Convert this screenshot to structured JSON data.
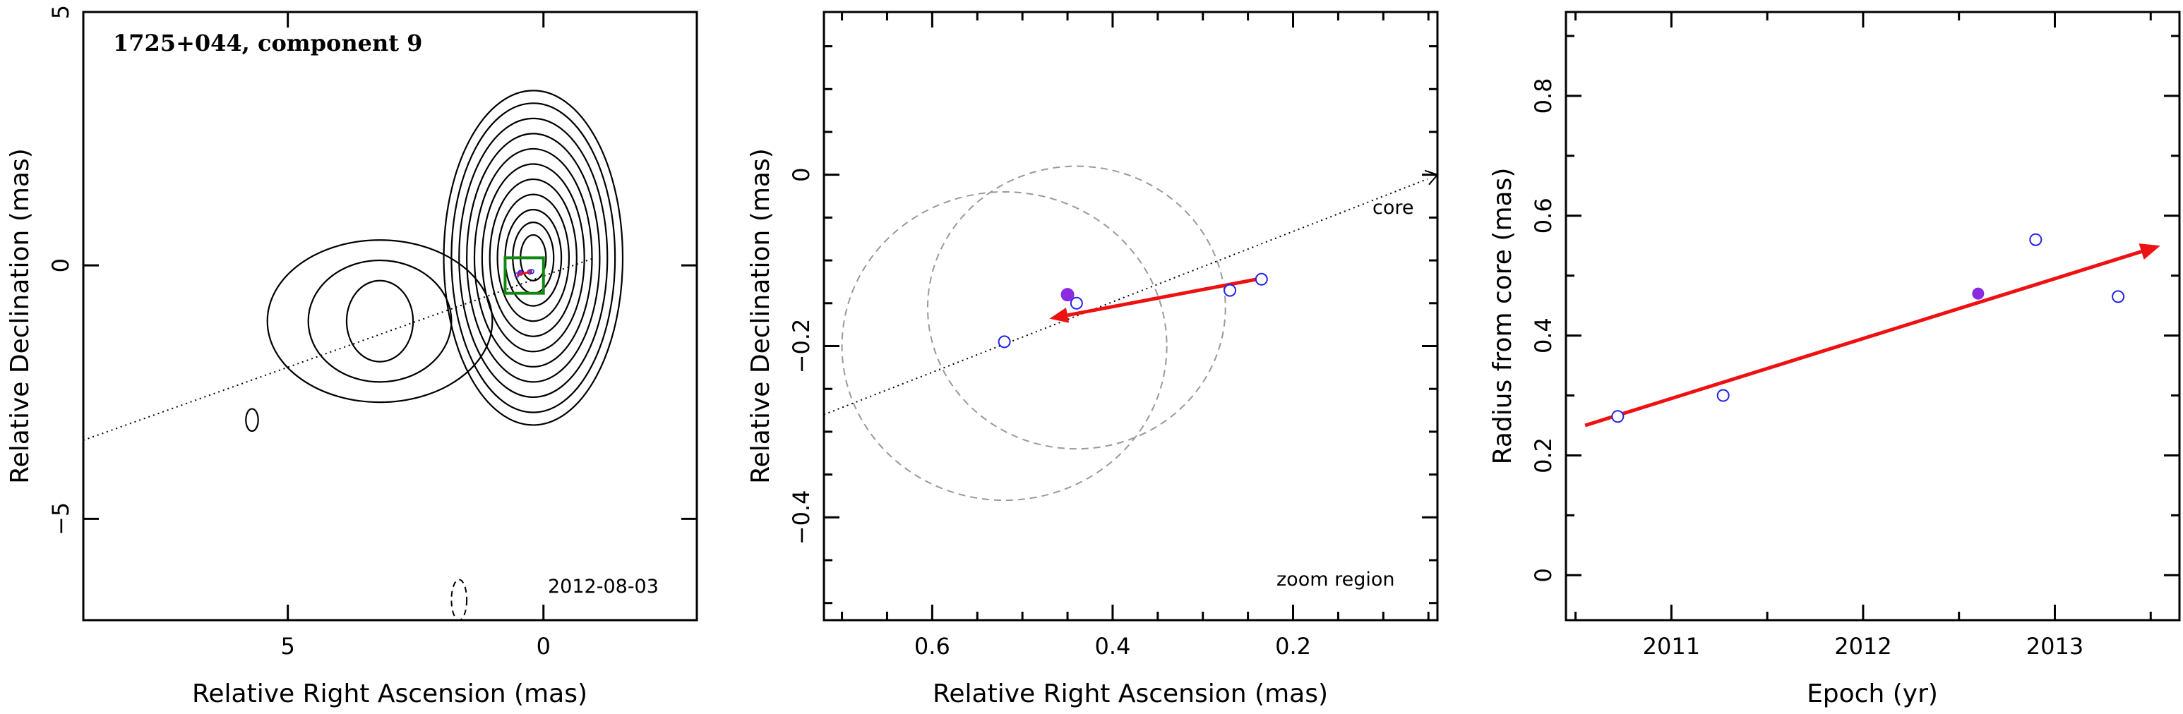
{
  "colors": {
    "axis": "#000000",
    "contour": "#000000",
    "arrow": "#ee1111",
    "marker_open": "#2222ee",
    "marker_filled": "#8a2be2",
    "zoom_box": "#118811",
    "beam_circle": "#999999"
  },
  "chart_data": [
    {
      "type": "contour",
      "title": "1725+044, component 9",
      "date_label": "2012-08-03",
      "xlabel": "Relative Right Ascension (mas)",
      "ylabel": "Relative Declination (mas)",
      "xlim": [
        9,
        -3
      ],
      "ylim": [
        -7,
        5
      ],
      "x_ticks": [
        5,
        0
      ],
      "y_ticks": [
        5,
        0,
        -5
      ],
      "jet_axis_line": {
        "x": [
          9,
          -1
        ],
        "y": [
          -3.45,
          0.15
        ]
      },
      "contours": [
        {
          "region": "core",
          "center": [
            0.2,
            0.15
          ],
          "radii": [
            [
              0.25,
              0.45
            ],
            [
              0.4,
              0.7
            ],
            [
              0.55,
              0.95
            ],
            [
              0.7,
              1.25
            ],
            [
              0.85,
              1.55
            ],
            [
              1.0,
              1.85
            ],
            [
              1.15,
              2.15
            ],
            [
              1.3,
              2.45
            ],
            [
              1.45,
              2.75
            ],
            [
              1.6,
              3.05
            ],
            [
              1.75,
              3.3
            ]
          ]
        },
        {
          "region": "extended",
          "center": [
            3.2,
            -1.1
          ],
          "radii": [
            [
              0.65,
              0.8
            ],
            [
              1.4,
              1.2
            ],
            [
              2.2,
              1.6
            ]
          ]
        },
        {
          "region": "isolated",
          "center": [
            5.7,
            -3.05
          ],
          "radii": [
            [
              0.12,
              0.22
            ]
          ]
        }
      ],
      "beam": {
        "center": [
          1.65,
          -6.6
        ],
        "radii": [
          0.15,
          0.4
        ],
        "style": "dashed"
      },
      "zoom_box": {
        "x": [
          0.75,
          0.0
        ],
        "y": [
          -0.55,
          0.15
        ]
      },
      "component_markers": [
        {
          "x": 0.52,
          "y": -0.19,
          "style": "open"
        },
        {
          "x": 0.44,
          "y": -0.15,
          "style": "open"
        },
        {
          "x": 0.27,
          "y": -0.13,
          "style": "open"
        },
        {
          "x": 0.23,
          "y": -0.12,
          "style": "open"
        },
        {
          "x": 0.45,
          "y": -0.14,
          "style": "filled"
        }
      ]
    },
    {
      "type": "scatter",
      "title": "",
      "zoom_label": "zoom region",
      "core_label": "core",
      "xlabel": "Relative Right Ascension (mas)",
      "ylabel": "Relative Declination (mas)",
      "xlim": [
        0.72,
        0.04
      ],
      "ylim": [
        -0.52,
        0.19
      ],
      "x_ticks": [
        0.6,
        0.4,
        0.2
      ],
      "x_minor_ticks": [
        0.7,
        0.65,
        0.55,
        0.5,
        0.45,
        0.35,
        0.3,
        0.25,
        0.15,
        0.1,
        0.05
      ],
      "y_ticks": [
        0,
        -0.2,
        -0.4
      ],
      "y_minor_ticks": [
        0.15,
        0.1,
        0.05,
        -0.05,
        -0.1,
        -0.15,
        -0.25,
        -0.3,
        -0.35,
        -0.45,
        -0.5
      ],
      "core_direction_line": {
        "x": [
          0.72,
          0.04
        ],
        "y": [
          -0.28,
          0.0
        ]
      },
      "beam_circles": [
        {
          "center": [
            0.52,
            -0.2
          ],
          "radius": 0.18
        },
        {
          "center": [
            0.44,
            -0.155
          ],
          "radius": 0.165
        }
      ],
      "points_open": [
        {
          "x": 0.52,
          "y": -0.195
        },
        {
          "x": 0.44,
          "y": -0.15
        },
        {
          "x": 0.27,
          "y": -0.135
        },
        {
          "x": 0.235,
          "y": -0.122
        }
      ],
      "points_filled": [
        {
          "x": 0.45,
          "y": -0.14
        }
      ],
      "motion_arrow": {
        "from": [
          0.23,
          -0.12
        ],
        "to": [
          0.47,
          -0.168
        ]
      }
    },
    {
      "type": "scatter",
      "title": "",
      "xlabel": "Epoch (yr)",
      "ylabel": "Radius from core (mas)",
      "xlim": [
        2010.45,
        2013.65
      ],
      "ylim": [
        -0.075,
        0.94
      ],
      "x_ticks": [
        2011,
        2012,
        2013
      ],
      "x_minor_ticks": [
        2010.5,
        2011.5,
        2012.5,
        2013.5
      ],
      "y_ticks": [
        0,
        0.2,
        0.4,
        0.6,
        0.8
      ],
      "y_minor_ticks": [
        0.1,
        0.3,
        0.5,
        0.7,
        0.9
      ],
      "points_open": [
        {
          "x": 2010.72,
          "y": 0.265
        },
        {
          "x": 2011.27,
          "y": 0.3
        },
        {
          "x": 2012.9,
          "y": 0.56
        },
        {
          "x": 2013.33,
          "y": 0.465
        }
      ],
      "points_filled": [
        {
          "x": 2012.6,
          "y": 0.47
        }
      ],
      "fit_arrow": {
        "from": [
          2010.55,
          0.25
        ],
        "to": [
          2013.55,
          0.55
        ]
      }
    }
  ]
}
